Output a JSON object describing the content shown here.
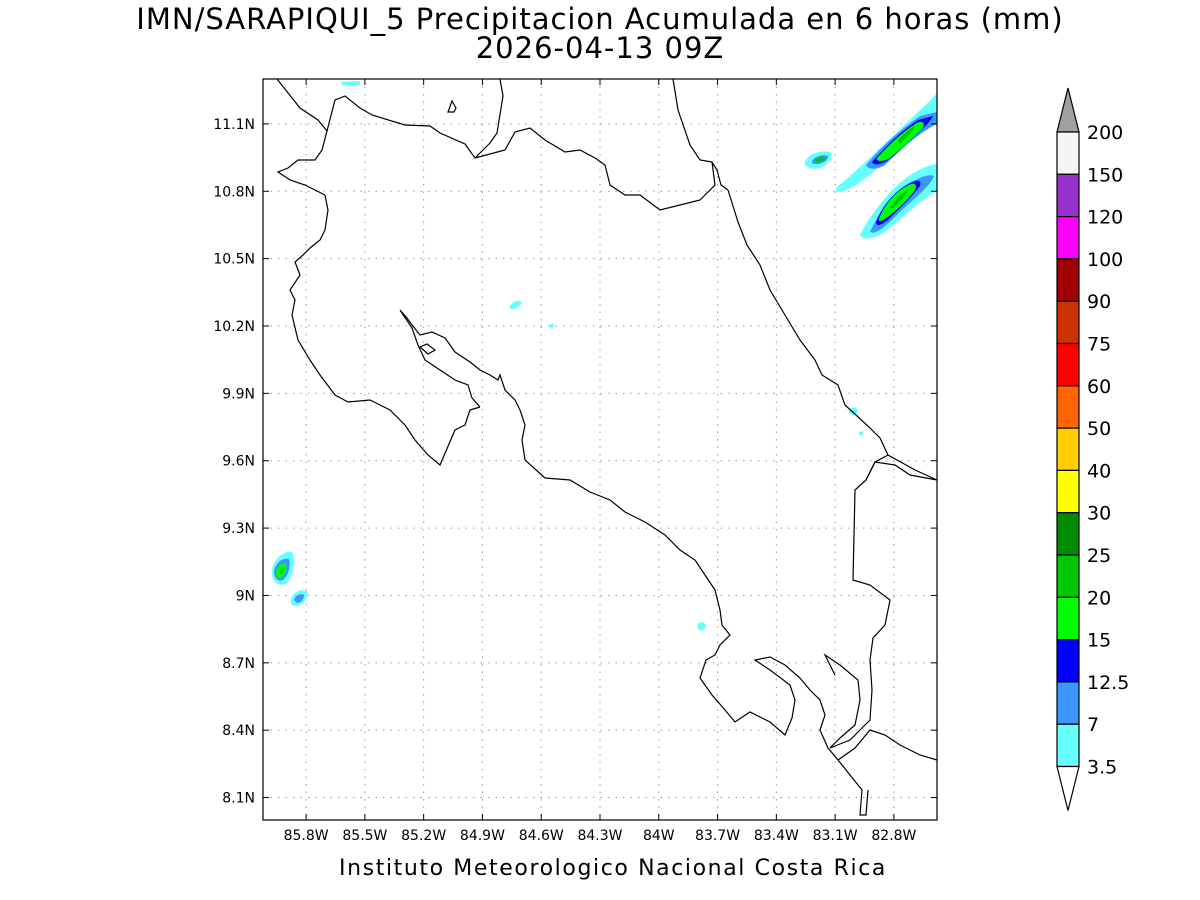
{
  "title": {
    "line1": "IMN/SARAPIQUI_5 Precipitacion Acumulada en 6 horas (mm)",
    "line2": "2026-04-13 09Z"
  },
  "footer": "Instituto Meteorologico Nacional Costa Rica",
  "map": {
    "lon_range": [
      -86.02,
      -82.58
    ],
    "lat_range": [
      8.0,
      11.3
    ],
    "x_ticks": [
      "85.8W",
      "85.5W",
      "85.2W",
      "84.9W",
      "84.6W",
      "84.3W",
      "84W",
      "83.7W",
      "83.4W",
      "83.1W",
      "82.8W"
    ],
    "y_ticks": [
      "11.1N",
      "10.8N",
      "10.5N",
      "10.2N",
      "9.9N",
      "9.6N",
      "9.3N",
      "9N",
      "8.7N",
      "8.4N",
      "8.1N"
    ],
    "grid": true
  },
  "colorbar": {
    "labels": [
      "200",
      "150",
      "120",
      "100",
      "90",
      "75",
      "60",
      "50",
      "40",
      "30",
      "25",
      "20",
      "15",
      "12.5",
      "7",
      "3.5"
    ],
    "colors": [
      "#a0a0a0",
      "#f5f5f5",
      "#9932cc",
      "#ff00ff",
      "#a00000",
      "#cc3300",
      "#ff0000",
      "#ff6600",
      "#ffcc00",
      "#ffff00",
      "#008c00",
      "#00c800",
      "#00ff00",
      "#0000ff",
      "#3c96ff",
      "#66ffff",
      "#ffffff"
    ]
  }
}
